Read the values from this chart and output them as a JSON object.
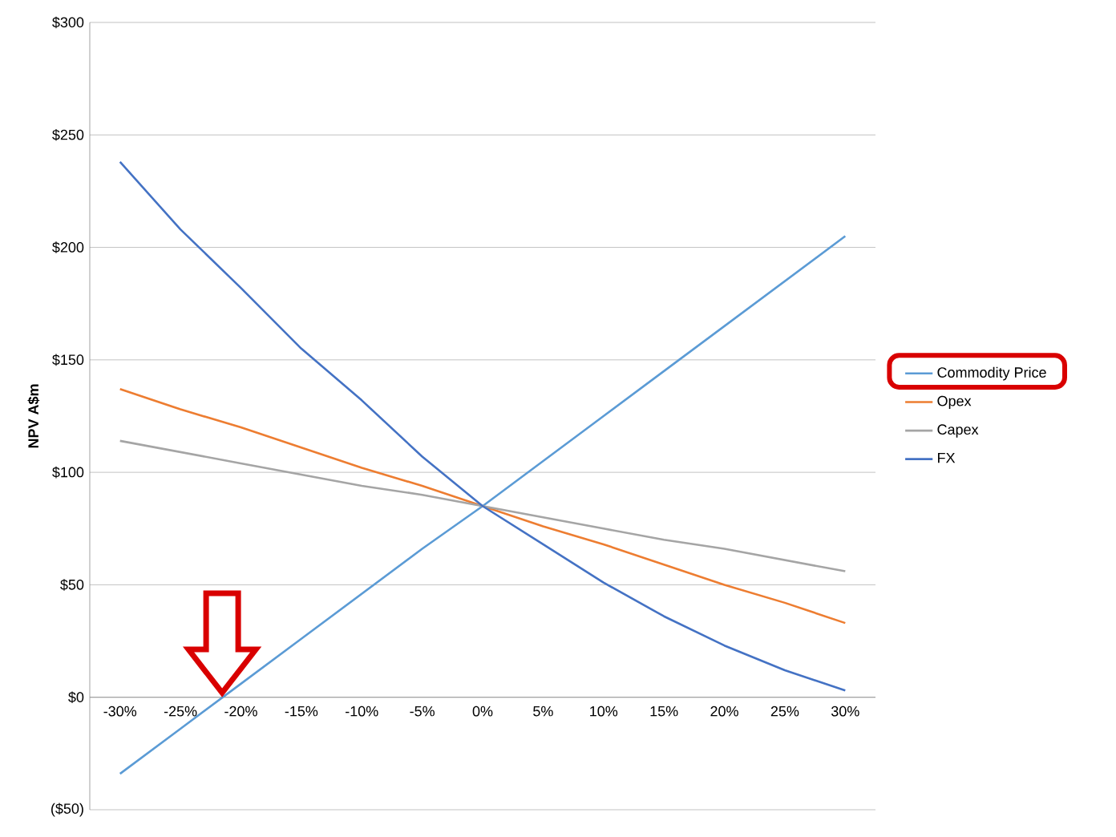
{
  "chart_data": {
    "type": "line",
    "ylabel": "NPV A$m",
    "categories": [
      "-30%",
      "-25%",
      "-20%",
      "-15%",
      "-10%",
      "-5%",
      "0%",
      "5%",
      "10%",
      "15%",
      "20%",
      "25%",
      "30%"
    ],
    "series": [
      {
        "name": "Commodity Price",
        "color": "#5b9bd5",
        "values": [
          -34,
          -14,
          6,
          26,
          46,
          66,
          85,
          105,
          125,
          145,
          165,
          185,
          205
        ]
      },
      {
        "name": "Opex",
        "color": "#ed7d31",
        "values": [
          137,
          128,
          120,
          111,
          102,
          94,
          85,
          76,
          68,
          59,
          50,
          42,
          33
        ]
      },
      {
        "name": "Capex",
        "color": "#a5a5a5",
        "values": [
          114,
          109,
          104,
          99,
          94,
          90,
          85,
          80,
          75,
          70,
          66,
          61,
          56
        ]
      },
      {
        "name": "FX",
        "color": "#4472c4",
        "values": [
          238,
          208,
          182,
          155,
          132,
          107,
          85,
          68,
          51,
          36,
          23,
          12,
          3
        ]
      }
    ],
    "ylim": [
      -50,
      300
    ],
    "yticks": [
      {
        "value": -50,
        "label": "($50)"
      },
      {
        "value": 0,
        "label": "$0"
      },
      {
        "value": 50,
        "label": "$50"
      },
      {
        "value": 100,
        "label": "$100"
      },
      {
        "value": 150,
        "label": "$150"
      },
      {
        "value": 200,
        "label": "$200"
      },
      {
        "value": 250,
        "label": "$250"
      },
      {
        "value": 300,
        "label": "$300"
      }
    ],
    "grid": "y",
    "legend": "right",
    "marker": "none",
    "line_style": "solid"
  }
}
